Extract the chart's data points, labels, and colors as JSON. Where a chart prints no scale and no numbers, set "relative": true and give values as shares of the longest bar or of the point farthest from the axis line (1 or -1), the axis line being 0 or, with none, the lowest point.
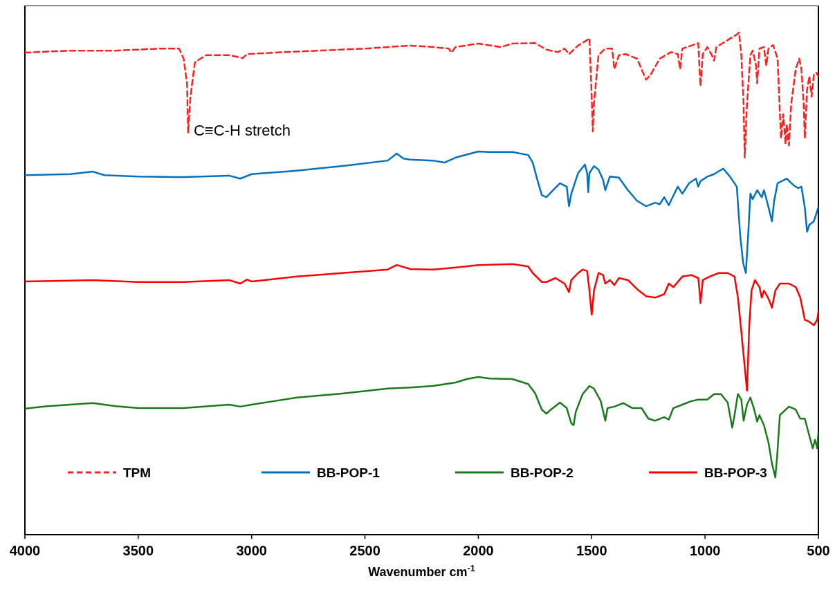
{
  "chart_data": {
    "type": "line",
    "relative": true,
    "xlabel": "Wavenumber cm$^{-1}$",
    "xlim": [
      4000,
      500
    ],
    "xticks": [
      4000,
      3500,
      3000,
      2500,
      2000,
      1500,
      1000,
      500
    ],
    "legend": "bottom",
    "grid": false,
    "annotations": [
      {
        "text": "C≡C-H stretch",
        "x": 3280,
        "y": 0.8
      }
    ],
    "series": [
      {
        "name": "TPM",
        "color": "#ff2020",
        "line_style": "dashed",
        "x": [
          4000,
          3800,
          3600,
          3400,
          3320,
          3300,
          3285,
          3280,
          3270,
          3250,
          3200,
          3100,
          3040,
          3020,
          2900,
          2700,
          2500,
          2300,
          2200,
          2130,
          2120,
          2100,
          2000,
          1900,
          1850,
          1750,
          1700,
          1650,
          1620,
          1600,
          1560,
          1520,
          1510,
          1500,
          1495,
          1490,
          1470,
          1440,
          1410,
          1400,
          1380,
          1350,
          1300,
          1260,
          1240,
          1200,
          1150,
          1120,
          1110,
          1100,
          1060,
          1030,
          1025,
          1020,
          1010,
          990,
          970,
          960,
          950,
          900,
          860,
          850,
          840,
          830,
          825,
          815,
          800,
          790,
          775,
          770,
          760,
          740,
          730,
          720,
          700,
          680,
          665,
          655,
          645,
          640,
          630,
          620,
          600,
          585,
          575,
          565,
          560,
          550,
          540,
          530,
          520,
          510,
          500
        ],
        "values": [
          0.96,
          0.964,
          0.964,
          0.968,
          0.968,
          0.948,
          0.899,
          0.8,
          0.872,
          0.941,
          0.955,
          0.955,
          0.949,
          0.957,
          0.96,
          0.964,
          0.968,
          0.974,
          0.971,
          0.968,
          0.96,
          0.971,
          0.978,
          0.971,
          0.978,
          0.979,
          0.966,
          0.961,
          0.968,
          0.957,
          0.974,
          0.985,
          0.989,
          0.872,
          0.803,
          0.858,
          0.955,
          0.968,
          0.968,
          0.927,
          0.955,
          0.957,
          0.948,
          0.906,
          0.916,
          0.948,
          0.961,
          0.957,
          0.927,
          0.968,
          0.974,
          0.979,
          0.934,
          0.893,
          0.957,
          0.971,
          0.955,
          0.944,
          0.971,
          0.985,
          0.996,
          1,
          0.955,
          0.858,
          0.751,
          0.858,
          0.955,
          0.964,
          0.934,
          0.899,
          0.968,
          0.971,
          0.934,
          0.968,
          0.975,
          0.948,
          0.789,
          0.837,
          0.778,
          0.817,
          0.775,
          0.858,
          0.927,
          0.948,
          0.927,
          0.858,
          0.789,
          0.886,
          0.913,
          0.872,
          0.916,
          0.92,
          0.913
        ]
      },
      {
        "name": "BB-POP-1",
        "color": "#0070c0",
        "line_style": "solid",
        "x": [
          4000,
          3800,
          3700,
          3650,
          3500,
          3300,
          3100,
          3050,
          3000,
          2800,
          2600,
          2400,
          2360,
          2330,
          2300,
          2200,
          2150,
          2100,
          2000,
          1950,
          1850,
          1780,
          1760,
          1740,
          1720,
          1700,
          1670,
          1640,
          1610,
          1600,
          1590,
          1560,
          1530,
          1520,
          1515,
          1510,
          1490,
          1470,
          1450,
          1440,
          1420,
          1380,
          1340,
          1300,
          1260,
          1220,
          1200,
          1180,
          1160,
          1140,
          1120,
          1100,
          1070,
          1040,
          1030,
          1020,
          990,
          960,
          920,
          890,
          860,
          845,
          832,
          820,
          810,
          800,
          790,
          770,
          750,
          740,
          720,
          705,
          695,
          680,
          640,
          610,
          590,
          575,
          560,
          550,
          540,
          520,
          500
        ],
        "values": [
          0.716,
          0.718,
          0.723,
          0.716,
          0.713,
          0.712,
          0.715,
          0.709,
          0.718,
          0.725,
          0.734,
          0.745,
          0.759,
          0.749,
          0.747,
          0.745,
          0.741,
          0.751,
          0.763,
          0.762,
          0.762,
          0.756,
          0.741,
          0.707,
          0.676,
          0.672,
          0.686,
          0.7,
          0.693,
          0.654,
          0.679,
          0.72,
          0.737,
          0.72,
          0.682,
          0.72,
          0.734,
          0.727,
          0.707,
          0.686,
          0.713,
          0.711,
          0.686,
          0.665,
          0.654,
          0.661,
          0.658,
          0.672,
          0.656,
          0.675,
          0.693,
          0.679,
          0.7,
          0.709,
          0.693,
          0.704,
          0.713,
          0.718,
          0.729,
          0.713,
          0.693,
          0.596,
          0.541,
          0.521,
          0.596,
          0.679,
          0.668,
          0.686,
          0.672,
          0.686,
          0.652,
          0.624,
          0.665,
          0.7,
          0.709,
          0.696,
          0.69,
          0.693,
          0.652,
          0.603,
          0.617,
          0.624,
          0.652
        ]
      },
      {
        "name": "BB-POP-2",
        "color": "#1a7a1a",
        "line_style": "solid",
        "x": [
          4000,
          3900,
          3700,
          3600,
          3500,
          3300,
          3100,
          3050,
          3000,
          2900,
          2800,
          2600,
          2400,
          2300,
          2200,
          2100,
          2050,
          2000,
          1950,
          1850,
          1780,
          1750,
          1720,
          1700,
          1680,
          1640,
          1610,
          1590,
          1580,
          1570,
          1540,
          1510,
          1490,
          1460,
          1440,
          1430,
          1400,
          1360,
          1320,
          1280,
          1250,
          1220,
          1180,
          1160,
          1140,
          1100,
          1060,
          1030,
          990,
          960,
          930,
          900,
          880,
          870,
          855,
          840,
          830,
          815,
          800,
          785,
          770,
          760,
          740,
          720,
          705,
          690,
          682,
          670,
          630,
          600,
          580,
          560,
          540,
          525,
          515,
          505,
          500
        ],
        "values": [
          0.251,
          0.256,
          0.262,
          0.256,
          0.252,
          0.252,
          0.259,
          0.255,
          0.259,
          0.266,
          0.273,
          0.281,
          0.291,
          0.293,
          0.296,
          0.303,
          0.31,
          0.314,
          0.311,
          0.31,
          0.3,
          0.282,
          0.249,
          0.241,
          0.249,
          0.263,
          0.252,
          0.222,
          0.218,
          0.245,
          0.28,
          0.296,
          0.291,
          0.266,
          0.227,
          0.252,
          0.255,
          0.262,
          0.252,
          0.252,
          0.231,
          0.227,
          0.234,
          0.229,
          0.252,
          0.259,
          0.266,
          0.269,
          0.269,
          0.28,
          0.28,
          0.263,
          0.213,
          0.238,
          0.28,
          0.269,
          0.227,
          0.259,
          0.273,
          0.252,
          0.225,
          0.238,
          0.218,
          0.183,
          0.142,
          0.114,
          0.156,
          0.238,
          0.255,
          0.249,
          0.231,
          0.231,
          0.197,
          0.172,
          0.189,
          0.172,
          0.204
        ]
      },
      {
        "name": "BB-POP-3",
        "color": "#ff0000",
        "line_style": "solid",
        "x": [
          4000,
          3700,
          3500,
          3300,
          3100,
          3050,
          3020,
          3000,
          2800,
          2600,
          2400,
          2360,
          2300,
          2200,
          2100,
          2000,
          1850,
          1780,
          1760,
          1720,
          1700,
          1660,
          1620,
          1600,
          1590,
          1560,
          1540,
          1520,
          1510,
          1500,
          1490,
          1470,
          1450,
          1440,
          1420,
          1400,
          1380,
          1340,
          1300,
          1260,
          1220,
          1180,
          1160,
          1140,
          1100,
          1060,
          1030,
          1025,
          1020,
          1010,
          980,
          940,
          900,
          870,
          855,
          840,
          815,
          805,
          795,
          780,
          760,
          750,
          740,
          720,
          705,
          690,
          670,
          630,
          600,
          580,
          560,
          540,
          520,
          505,
          500
        ],
        "values": [
          0.504,
          0.507,
          0.503,
          0.503,
          0.507,
          0.5,
          0.508,
          0.504,
          0.514,
          0.521,
          0.528,
          0.537,
          0.529,
          0.528,
          0.532,
          0.537,
          0.539,
          0.534,
          0.521,
          0.503,
          0.503,
          0.511,
          0.5,
          0.483,
          0.507,
          0.521,
          0.528,
          0.525,
          0.486,
          0.438,
          0.486,
          0.521,
          0.517,
          0.5,
          0.507,
          0.497,
          0.511,
          0.507,
          0.489,
          0.475,
          0.472,
          0.479,
          0.5,
          0.493,
          0.514,
          0.517,
          0.511,
          0.489,
          0.461,
          0.507,
          0.514,
          0.521,
          0.521,
          0.514,
          0.472,
          0.404,
          0.287,
          0.417,
          0.486,
          0.507,
          0.493,
          0.472,
          0.486,
          0.47,
          0.452,
          0.486,
          0.5,
          0.5,
          0.493,
          0.472,
          0.428,
          0.424,
          0.417,
          0.428,
          0.445
        ]
      }
    ]
  }
}
